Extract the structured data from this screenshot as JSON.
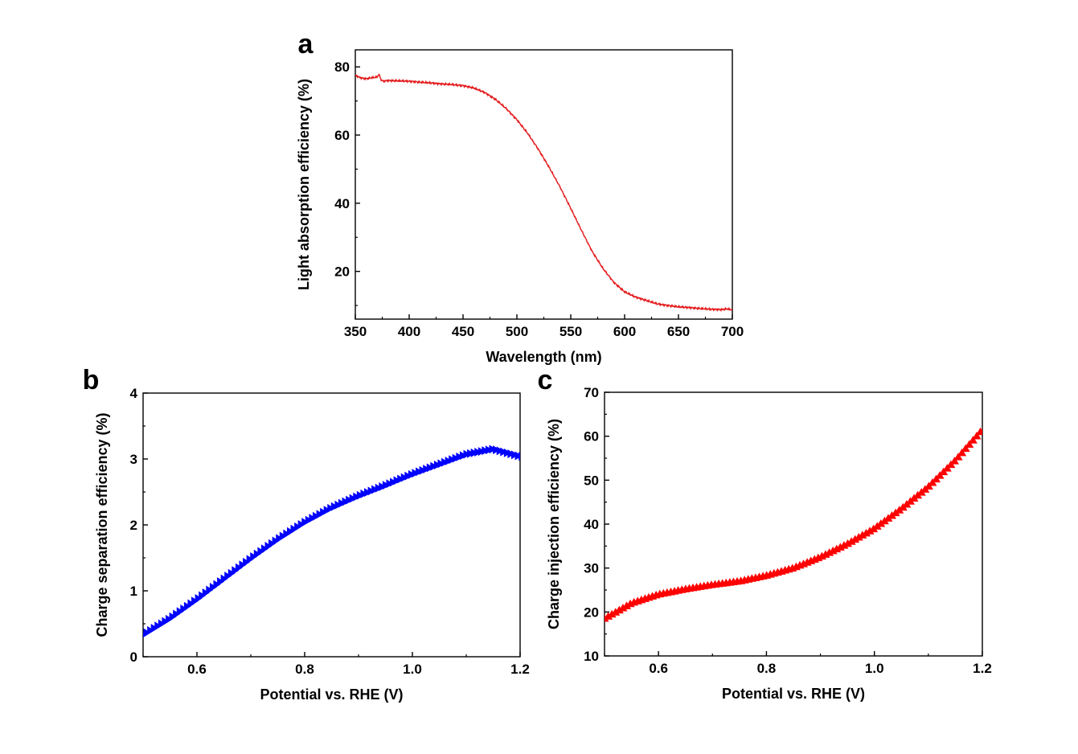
{
  "chart_data": [
    {
      "type": "line",
      "panel_label": "a",
      "xlabel": "Wavelength (nm)",
      "ylabel": "Light absorption efficiency (%)",
      "xlim": [
        350,
        700
      ],
      "ylim": [
        6,
        85
      ],
      "xticks": [
        350,
        400,
        450,
        500,
        550,
        600,
        650,
        700
      ],
      "yticks": [
        20,
        40,
        60,
        80
      ],
      "color": "#e31a1c",
      "grid": false,
      "legend": "none",
      "series": [
        {
          "x": [
            350,
            355,
            360,
            365,
            370,
            372,
            374,
            376,
            380,
            390,
            400,
            410,
            420,
            430,
            440,
            450,
            460,
            470,
            480,
            490,
            500,
            510,
            520,
            530,
            540,
            550,
            560,
            570,
            580,
            590,
            600,
            610,
            620,
            630,
            640,
            650,
            660,
            670,
            680,
            690,
            695,
            700
          ],
          "y": [
            77.5,
            76.8,
            76.5,
            76.8,
            77.0,
            77.8,
            76.2,
            75.8,
            76.0,
            75.9,
            75.8,
            75.5,
            75.3,
            75.0,
            74.8,
            74.5,
            73.8,
            72.5,
            70.5,
            67.8,
            64.5,
            60.5,
            55.8,
            50.5,
            44.8,
            38.5,
            32.0,
            25.8,
            20.8,
            16.8,
            14.0,
            12.5,
            11.5,
            10.5,
            10.0,
            9.6,
            9.4,
            9.1,
            8.9,
            8.8,
            9.0,
            8.7
          ]
        }
      ]
    },
    {
      "type": "scatter",
      "panel_label": "b",
      "xlabel": "Potential vs. RHE (V)",
      "ylabel": "Charge separation efficiency (%)",
      "xlim": [
        0.5,
        1.2
      ],
      "ylim": [
        0,
        4
      ],
      "xticks": [
        0.6,
        0.8,
        1.0,
        1.2
      ],
      "yticks": [
        0,
        1,
        2,
        3,
        4
      ],
      "color": "#0000ff",
      "marker": "right-triangle",
      "grid": false,
      "legend": "none",
      "series": [
        {
          "x": [
            0.5,
            0.55,
            0.6,
            0.65,
            0.7,
            0.75,
            0.8,
            0.85,
            0.9,
            0.95,
            1.0,
            1.05,
            1.1,
            1.15,
            1.2
          ],
          "y": [
            0.33,
            0.58,
            0.87,
            1.18,
            1.49,
            1.78,
            2.04,
            2.26,
            2.44,
            2.6,
            2.77,
            2.92,
            3.07,
            3.15,
            3.04
          ]
        }
      ]
    },
    {
      "type": "scatter",
      "panel_label": "c",
      "xlabel": "Potential vs. RHE (V)",
      "ylabel": "Charge injection efficiency (%)",
      "xlim": [
        0.5,
        1.2
      ],
      "ylim": [
        10,
        70
      ],
      "xticks": [
        0.6,
        0.8,
        1.0,
        1.2
      ],
      "yticks": [
        10,
        20,
        30,
        40,
        50,
        60,
        70
      ],
      "color": "#ff0000",
      "marker": "up-triangle",
      "grid": false,
      "legend": "none",
      "series": [
        {
          "x": [
            0.5,
            0.55,
            0.6,
            0.65,
            0.7,
            0.75,
            0.8,
            0.85,
            0.9,
            0.95,
            1.0,
            1.05,
            1.1,
            1.15,
            1.2
          ],
          "y": [
            18.5,
            22.0,
            24.0,
            25.2,
            26.2,
            27.0,
            28.3,
            30.0,
            32.5,
            35.5,
            39.0,
            43.5,
            48.5,
            54.5,
            61.5
          ]
        }
      ]
    }
  ]
}
